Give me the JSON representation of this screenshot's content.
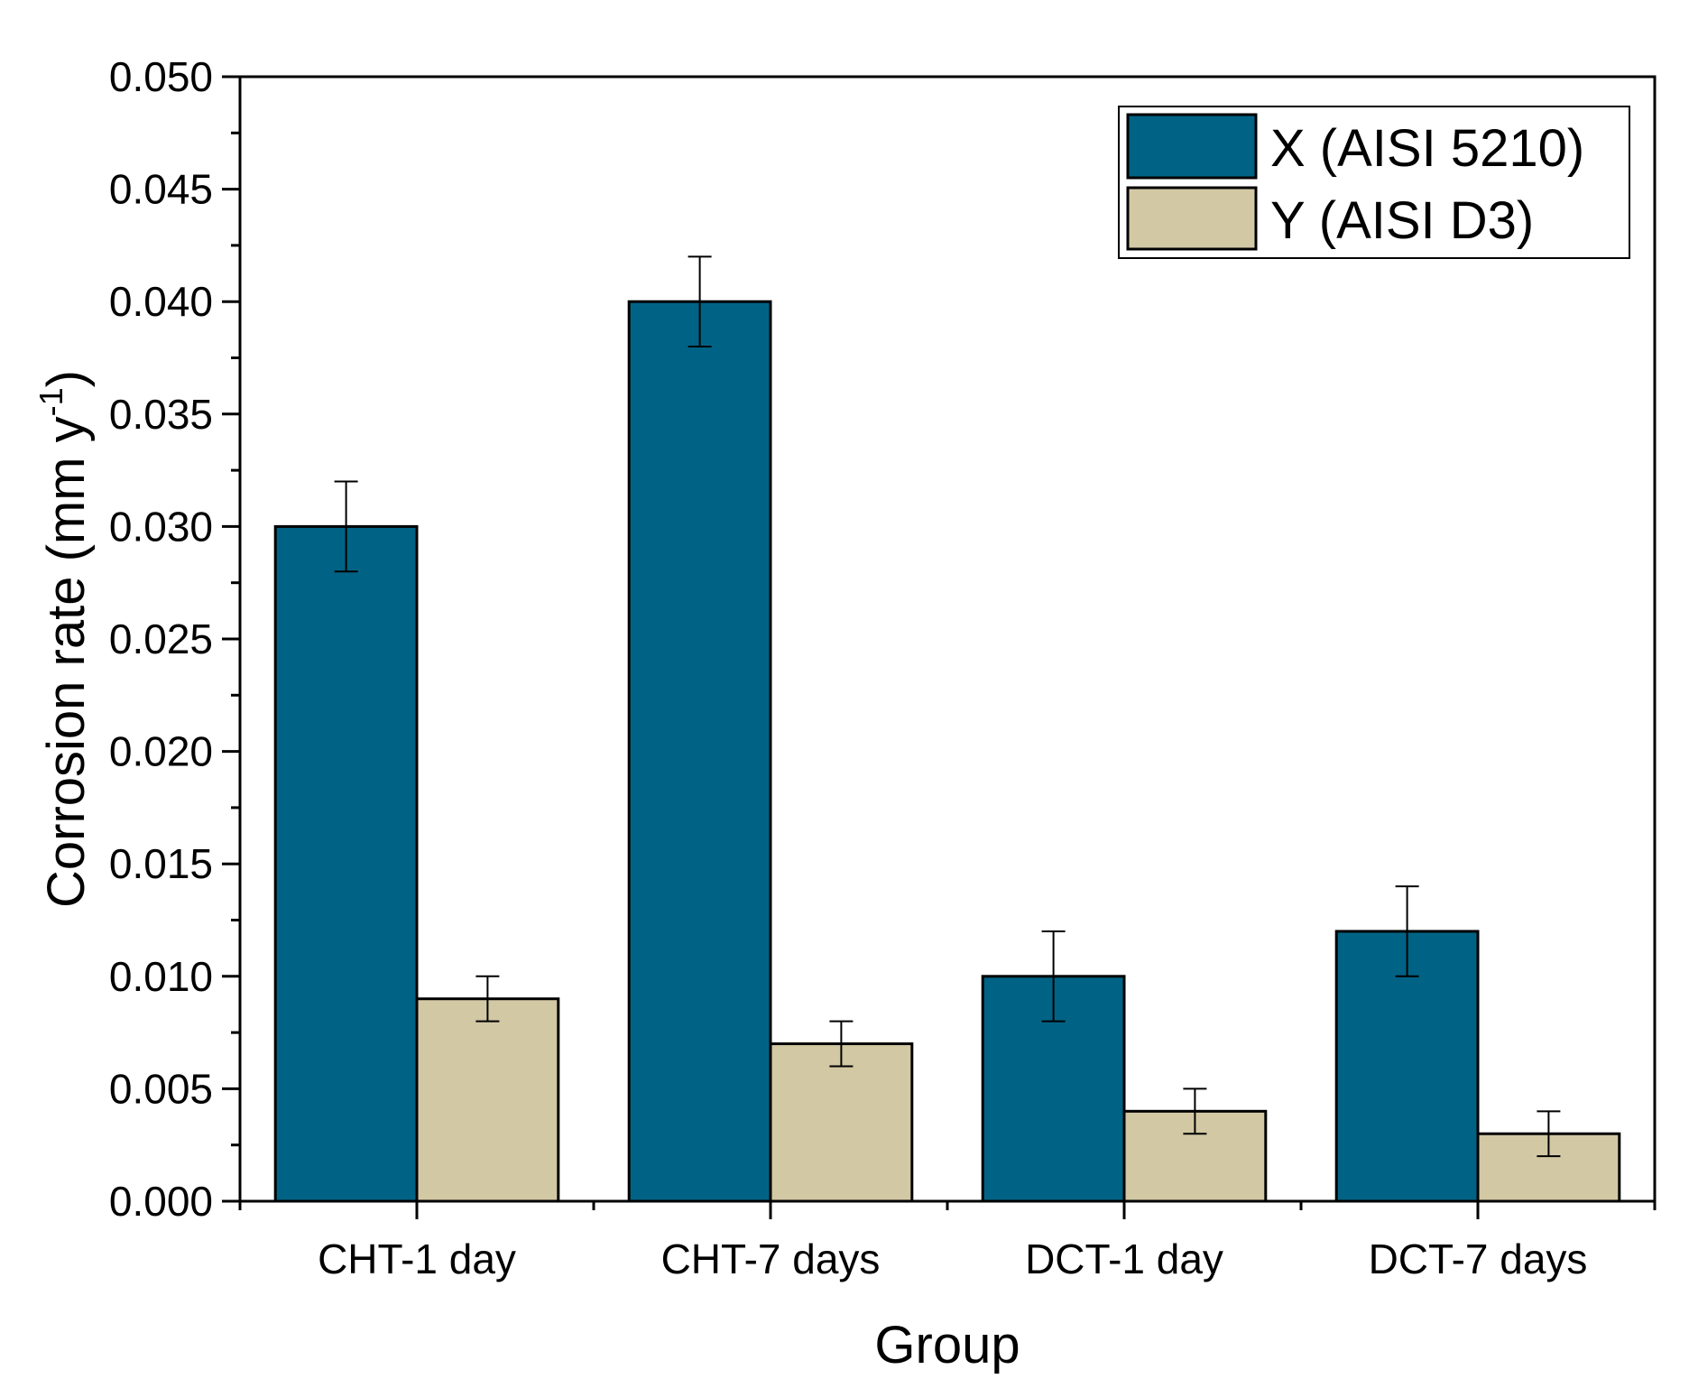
{
  "chart_data": {
    "type": "bar",
    "categories": [
      "CHT-1 day",
      "CHT-7 days",
      "DCT-1 day",
      "DCT-7 days"
    ],
    "series": [
      {
        "name": "X (AISI 5210)",
        "color": "#006385",
        "values": [
          0.03,
          0.04,
          0.01,
          0.012
        ],
        "errors": [
          0.002,
          0.002,
          0.002,
          0.002
        ]
      },
      {
        "name": "Y (AISI D3)",
        "color": "#d2c8a4",
        "values": [
          0.009,
          0.007,
          0.004,
          0.003
        ],
        "errors": [
          0.001,
          0.001,
          0.001,
          0.001
        ]
      }
    ],
    "xlabel": "Group",
    "ylabel_main": "Corrosion rate (mm y",
    "ylabel_sup": "-1",
    "ylabel_close": ")",
    "ylim": [
      0,
      0.05
    ],
    "yticks": [
      "0.000",
      "0.005",
      "0.010",
      "0.015",
      "0.020",
      "0.025",
      "0.030",
      "0.035",
      "0.040",
      "0.045",
      "0.050"
    ],
    "legend_position": "top-right",
    "grid": false
  }
}
